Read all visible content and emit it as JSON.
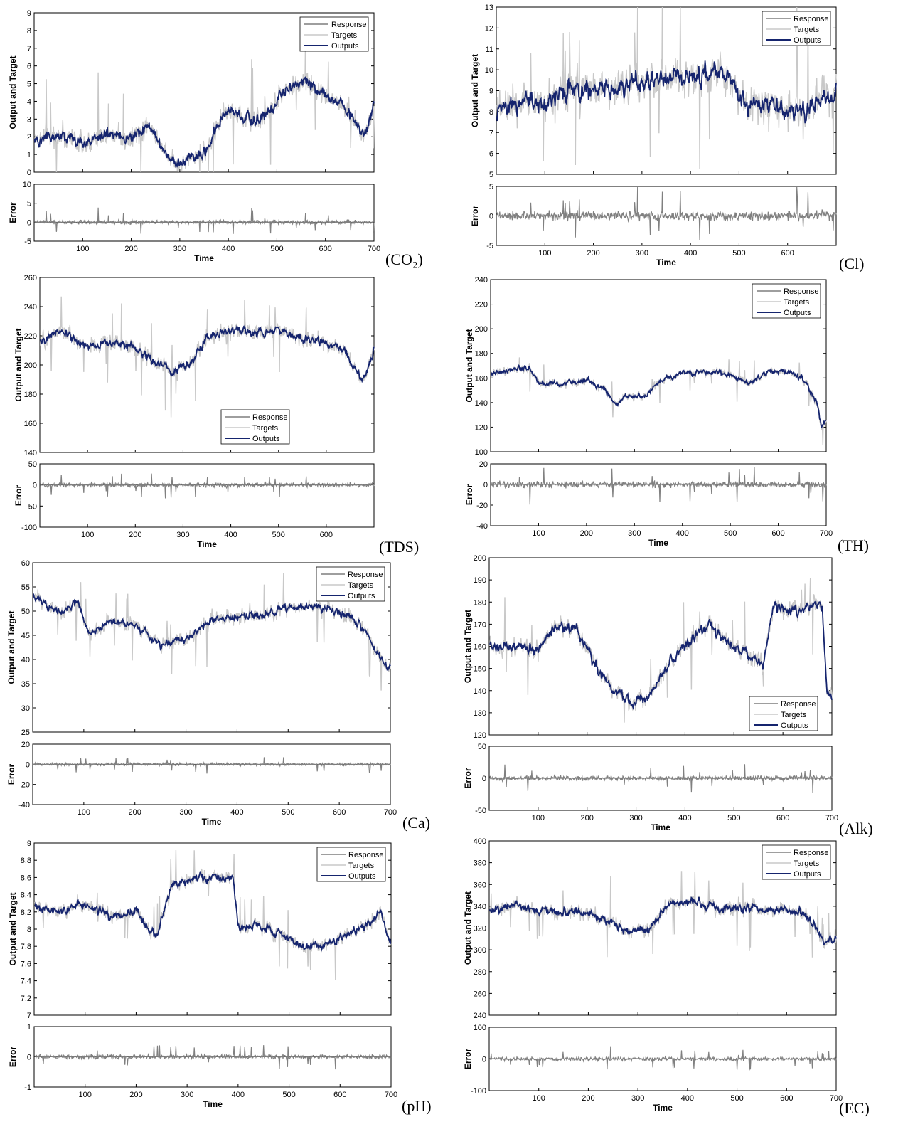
{
  "legend_labels": [
    "Response",
    "Targets",
    "Outputs"
  ],
  "colors": {
    "response": "#3c3c3c",
    "targets": "#c8c8c8",
    "outputs": "#15246e",
    "error": "#808080"
  },
  "chart_data": [
    {
      "type": "line",
      "panel_label": "(CO₂)",
      "xlabel": "Time",
      "ylabel": "Output and Target",
      "error_label": "Error",
      "xlim": [
        0,
        700
      ],
      "ylim": [
        0,
        9
      ],
      "err_ylim": [
        -5,
        10
      ],
      "xticks": [
        100,
        200,
        300,
        400,
        500,
        600,
        700
      ],
      "yticks": [
        0,
        1,
        2,
        3,
        4,
        5,
        6,
        7,
        8,
        9
      ],
      "err_yticks": [
        -5,
        0,
        5,
        10
      ],
      "legend_position": "top-right",
      "trend": [
        [
          0,
          1.8
        ],
        [
          50,
          2.1
        ],
        [
          100,
          1.6
        ],
        [
          150,
          2.3
        ],
        [
          200,
          1.9
        ],
        [
          240,
          2.8
        ],
        [
          260,
          1.3
        ],
        [
          300,
          0.5
        ],
        [
          350,
          1.2
        ],
        [
          380,
          2.6
        ],
        [
          400,
          3.6
        ],
        [
          450,
          2.9
        ],
        [
          480,
          3.1
        ],
        [
          510,
          4.6
        ],
        [
          560,
          5.1
        ],
        [
          600,
          4.4
        ],
        [
          640,
          3.6
        ],
        [
          680,
          2.1
        ],
        [
          700,
          3.8
        ]
      ],
      "noise": 0.35,
      "target_noise": 0.8,
      "err_spread": 0.8
    },
    {
      "type": "line",
      "panel_label": "(Cl)",
      "xlabel": "Time",
      "ylabel": "Output and Target",
      "error_label": "Error",
      "xlim": [
        0,
        700
      ],
      "ylim": [
        5,
        13
      ],
      "err_ylim": [
        -5,
        5
      ],
      "xticks": [
        100,
        200,
        300,
        400,
        500,
        600
      ],
      "yticks": [
        5,
        6,
        7,
        8,
        9,
        10,
        11,
        12,
        13
      ],
      "err_yticks": [
        -5,
        0,
        5
      ],
      "legend_position": "top-right",
      "trend": [
        [
          0,
          8.0
        ],
        [
          60,
          8.5
        ],
        [
          100,
          8.4
        ],
        [
          150,
          9.0
        ],
        [
          200,
          9.1
        ],
        [
          250,
          9.2
        ],
        [
          300,
          9.4
        ],
        [
          350,
          9.6
        ],
        [
          400,
          9.8
        ],
        [
          450,
          9.9
        ],
        [
          480,
          9.6
        ],
        [
          520,
          8.4
        ],
        [
          560,
          8.3
        ],
        [
          600,
          8.1
        ],
        [
          640,
          8.2
        ],
        [
          680,
          8.7
        ],
        [
          700,
          8.9
        ]
      ],
      "noise": 0.5,
      "target_noise": 1.1,
      "err_spread": 0.8
    },
    {
      "type": "line",
      "panel_label": "(TDS)",
      "xlabel": "Time",
      "ylabel": "Output and Target",
      "error_label": "Error",
      "xlim": [
        0,
        700
      ],
      "ylim": [
        140,
        260
      ],
      "err_ylim": [
        -100,
        50
      ],
      "xticks": [
        100,
        200,
        300,
        400,
        500,
        600
      ],
      "yticks": [
        140,
        160,
        180,
        200,
        220,
        240,
        260
      ],
      "err_yticks": [
        -100,
        -50,
        0,
        50
      ],
      "legend_position": "bottom-center",
      "trend": [
        [
          0,
          214
        ],
        [
          40,
          224
        ],
        [
          60,
          220
        ],
        [
          100,
          212
        ],
        [
          150,
          216
        ],
        [
          200,
          211
        ],
        [
          250,
          200
        ],
        [
          280,
          196
        ],
        [
          320,
          202
        ],
        [
          350,
          218
        ],
        [
          400,
          224
        ],
        [
          450,
          222
        ],
        [
          500,
          224
        ],
        [
          550,
          218
        ],
        [
          600,
          216
        ],
        [
          640,
          210
        ],
        [
          660,
          196
        ],
        [
          680,
          190
        ],
        [
          700,
          210
        ]
      ],
      "noise": 3,
      "target_noise": 7,
      "err_spread": 5
    },
    {
      "type": "line",
      "panel_label": "(TH)",
      "xlabel": "Time",
      "ylabel": "Output and Target",
      "error_label": "Error",
      "xlim": [
        0,
        700
      ],
      "ylim": [
        100,
        240
      ],
      "err_ylim": [
        -40,
        20
      ],
      "xticks": [
        100,
        200,
        300,
        400,
        500,
        600,
        700
      ],
      "yticks": [
        100,
        120,
        140,
        160,
        180,
        200,
        220,
        240
      ],
      "err_yticks": [
        -40,
        -20,
        0,
        20
      ],
      "legend_position": "top-right",
      "trend": [
        [
          0,
          163
        ],
        [
          50,
          167
        ],
        [
          80,
          168
        ],
        [
          100,
          155
        ],
        [
          150,
          155
        ],
        [
          200,
          158
        ],
        [
          240,
          150
        ],
        [
          260,
          138
        ],
        [
          280,
          145
        ],
        [
          320,
          145
        ],
        [
          350,
          156
        ],
        [
          400,
          164
        ],
        [
          450,
          165
        ],
        [
          500,
          162
        ],
        [
          540,
          156
        ],
        [
          580,
          165
        ],
        [
          620,
          165
        ],
        [
          650,
          160
        ],
        [
          680,
          140
        ],
        [
          690,
          120
        ],
        [
          700,
          125
        ]
      ],
      "noise": 2,
      "target_noise": 4,
      "err_spread": 4
    },
    {
      "type": "line",
      "panel_label": "(Ca)",
      "xlabel": "Time",
      "ylabel": "Output and Target",
      "error_label": "Error",
      "xlim": [
        0,
        700
      ],
      "ylim": [
        25,
        60
      ],
      "err_ylim": [
        -40,
        20
      ],
      "xticks": [
        100,
        200,
        300,
        400,
        500,
        600,
        700
      ],
      "yticks": [
        25,
        30,
        35,
        40,
        45,
        50,
        55,
        60
      ],
      "err_yticks": [
        -40,
        -20,
        0,
        20
      ],
      "legend_position": "top-right",
      "trend": [
        [
          0,
          53
        ],
        [
          50,
          50
        ],
        [
          90,
          52
        ],
        [
          110,
          45
        ],
        [
          150,
          48
        ],
        [
          200,
          47
        ],
        [
          250,
          43
        ],
        [
          300,
          44
        ],
        [
          350,
          48
        ],
        [
          400,
          49
        ],
        [
          450,
          49
        ],
        [
          500,
          51
        ],
        [
          560,
          51
        ],
        [
          620,
          49
        ],
        [
          650,
          46
        ],
        [
          680,
          40
        ],
        [
          700,
          38
        ]
      ],
      "noise": 0.8,
      "target_noise": 2,
      "err_spread": 1.8
    },
    {
      "type": "line",
      "panel_label": "(Alk)",
      "xlabel": "Time",
      "ylabel": "Output and Target",
      "error_label": "Error",
      "xlim": [
        0,
        700
      ],
      "ylim": [
        120,
        200
      ],
      "err_ylim": [
        -50,
        50
      ],
      "xticks": [
        100,
        200,
        300,
        400,
        500,
        600,
        700
      ],
      "yticks": [
        120,
        130,
        140,
        150,
        160,
        170,
        180,
        190,
        200
      ],
      "err_yticks": [
        -50,
        0,
        50
      ],
      "legend_position": "bottom-right",
      "trend": [
        [
          0,
          160
        ],
        [
          60,
          160
        ],
        [
          100,
          158
        ],
        [
          130,
          168
        ],
        [
          180,
          168
        ],
        [
          220,
          150
        ],
        [
          260,
          140
        ],
        [
          290,
          134
        ],
        [
          330,
          138
        ],
        [
          360,
          150
        ],
        [
          400,
          160
        ],
        [
          450,
          170
        ],
        [
          480,
          162
        ],
        [
          520,
          157
        ],
        [
          560,
          152
        ],
        [
          580,
          178
        ],
        [
          620,
          176
        ],
        [
          650,
          178
        ],
        [
          680,
          178
        ],
        [
          690,
          140
        ],
        [
          700,
          135
        ]
      ],
      "noise": 2.5,
      "target_noise": 5,
      "err_spread": 4
    },
    {
      "type": "line",
      "panel_label": "(pH)",
      "xlabel": "Time",
      "ylabel": "Output and Target",
      "error_label": "Error",
      "xlim": [
        0,
        700
      ],
      "ylim": [
        7,
        9
      ],
      "err_ylim": [
        -1,
        1
      ],
      "xticks": [
        100,
        200,
        300,
        400,
        500,
        600,
        700
      ],
      "yticks": [
        7,
        7.2,
        7.4,
        7.6,
        7.8,
        8,
        8.2,
        8.4,
        8.6,
        8.8,
        9
      ],
      "err_yticks": [
        -1,
        0,
        1
      ],
      "legend_position": "top-right",
      "trend": [
        [
          0,
          8.25
        ],
        [
          50,
          8.2
        ],
        [
          100,
          8.3
        ],
        [
          150,
          8.15
        ],
        [
          200,
          8.2
        ],
        [
          240,
          7.9
        ],
        [
          270,
          8.5
        ],
        [
          320,
          8.6
        ],
        [
          390,
          8.6
        ],
        [
          400,
          8.0
        ],
        [
          440,
          8.05
        ],
        [
          480,
          7.95
        ],
        [
          520,
          7.8
        ],
        [
          560,
          7.8
        ],
        [
          600,
          7.9
        ],
        [
          640,
          8.0
        ],
        [
          680,
          8.2
        ],
        [
          700,
          7.8
        ]
      ],
      "noise": 0.05,
      "target_noise": 0.1,
      "err_spread": 0.09
    },
    {
      "type": "line",
      "panel_label": "(EC)",
      "xlabel": "Time",
      "ylabel": "Output and Target",
      "error_label": "Error",
      "xlim": [
        0,
        700
      ],
      "ylim": [
        240,
        400
      ],
      "err_ylim": [
        -100,
        100
      ],
      "xticks": [
        100,
        200,
        300,
        400,
        500,
        600,
        700
      ],
      "yticks": [
        240,
        260,
        280,
        300,
        320,
        340,
        360,
        380,
        400
      ],
      "err_yticks": [
        -100,
        0,
        100
      ],
      "legend_position": "top-right",
      "trend": [
        [
          0,
          334
        ],
        [
          50,
          342
        ],
        [
          100,
          335
        ],
        [
          150,
          335
        ],
        [
          200,
          333
        ],
        [
          250,
          325
        ],
        [
          280,
          316
        ],
        [
          320,
          318
        ],
        [
          360,
          340
        ],
        [
          400,
          345
        ],
        [
          440,
          340
        ],
        [
          480,
          338
        ],
        [
          520,
          340
        ],
        [
          560,
          338
        ],
        [
          600,
          336
        ],
        [
          640,
          330
        ],
        [
          660,
          320
        ],
        [
          680,
          305
        ],
        [
          700,
          310
        ]
      ],
      "noise": 4,
      "target_noise": 8,
      "err_spread": 6
    }
  ]
}
